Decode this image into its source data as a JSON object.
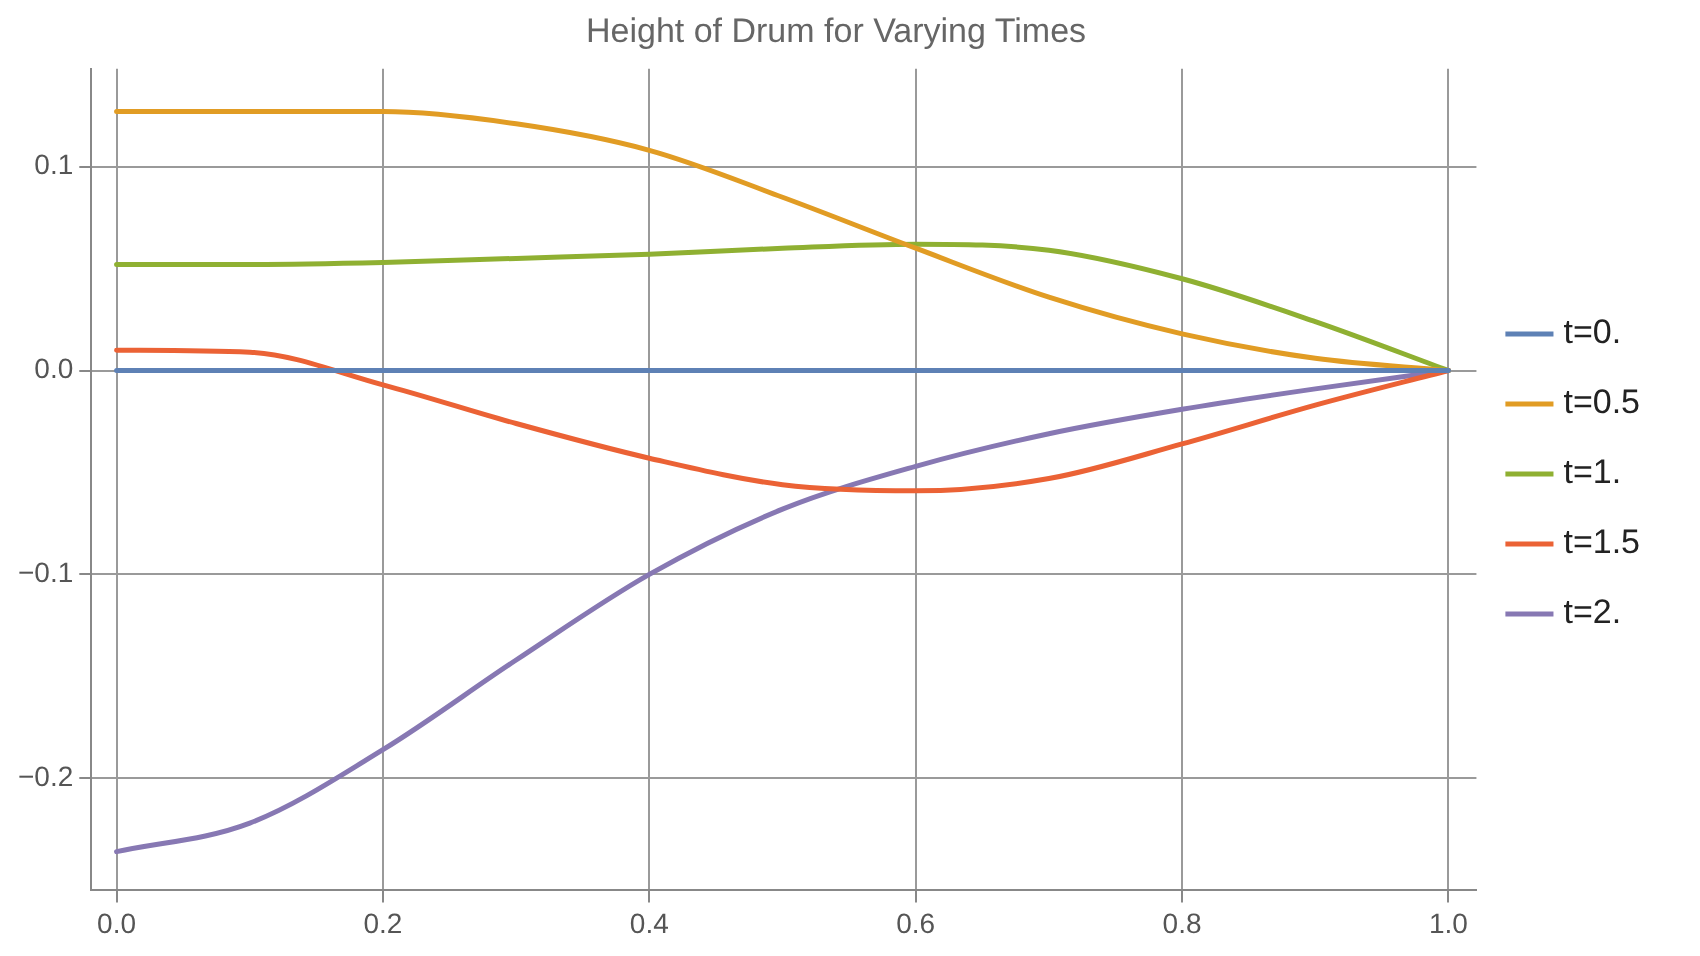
{
  "chart_data": {
    "type": "line",
    "title": "Height of Drum for Varying Times",
    "x": [
      0,
      0.1,
      0.2,
      0.3,
      0.4,
      0.5,
      0.6,
      0.7,
      0.8,
      0.9,
      1.0
    ],
    "series": [
      {
        "name": "t=0.",
        "color": "#5e81b5",
        "values": [
          0,
          0,
          0,
          0,
          0,
          0,
          0,
          0,
          0,
          0,
          0
        ]
      },
      {
        "name": "t=0.5",
        "color": "#e19c24",
        "values": [
          0.127,
          0.127,
          0.127,
          0.121,
          0.108,
          0.085,
          0.06,
          0.036,
          0.018,
          0.006,
          0
        ]
      },
      {
        "name": "t=1.",
        "color": "#8fb032",
        "values": [
          0.052,
          0.052,
          0.053,
          0.055,
          0.057,
          0.06,
          0.062,
          0.059,
          0.045,
          0.024,
          0
        ]
      },
      {
        "name": "t=1.5",
        "color": "#eb6235",
        "values": [
          0.01,
          0.009,
          -0.007,
          -0.026,
          -0.043,
          -0.056,
          -0.059,
          -0.053,
          -0.036,
          -0.017,
          0
        ]
      },
      {
        "name": "t=2.",
        "color": "#8778b3",
        "values": [
          -0.236,
          -0.222,
          -0.186,
          -0.142,
          -0.1,
          -0.068,
          -0.047,
          -0.031,
          -0.019,
          -0.009,
          0
        ]
      }
    ],
    "xlim": [
      -0.019,
      1.021
    ],
    "ylim": [
      -0.255,
      0.148
    ],
    "xticks": [
      {
        "value": 0,
        "label": "0.0"
      },
      {
        "value": 0.2,
        "label": "0.2"
      },
      {
        "value": 0.4,
        "label": "0.4"
      },
      {
        "value": 0.6,
        "label": "0.6"
      },
      {
        "value": 0.8,
        "label": "0.8"
      },
      {
        "value": 1,
        "label": "1.0"
      }
    ],
    "yticks": [
      {
        "value": -0.2,
        "label": "−0.2"
      },
      {
        "value": -0.1,
        "label": "−0.1"
      },
      {
        "value": 0,
        "label": "0.0"
      },
      {
        "value": 0.1,
        "label": "0.1"
      }
    ],
    "grid": true,
    "legend": "right",
    "marker": "none",
    "line_style": "solid"
  }
}
